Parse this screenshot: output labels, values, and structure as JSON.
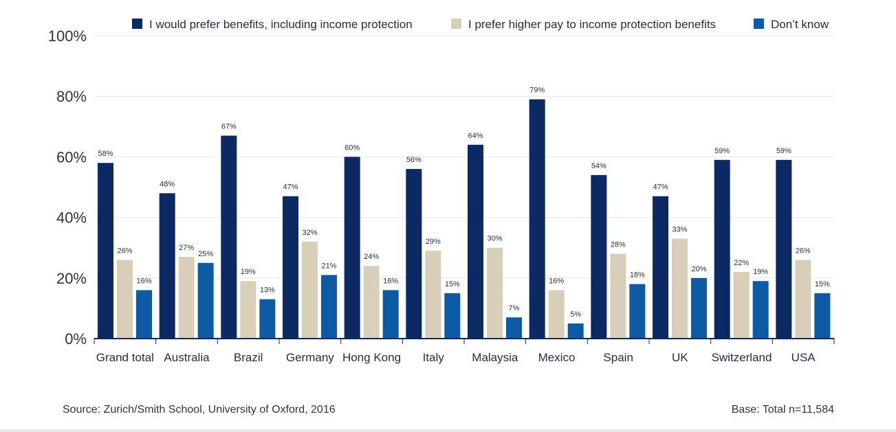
{
  "chart_data": {
    "type": "bar",
    "categories": [
      "Grand total",
      "Australia",
      "Brazil",
      "Germany",
      "Hong Kong",
      "Italy",
      "Malaysia",
      "Mexico",
      "Spain",
      "UK",
      "Switzerland",
      "USA"
    ],
    "series": [
      {
        "name": "I would prefer benefits, including income protection",
        "color": "#0b2a63",
        "values": [
          58,
          48,
          67,
          47,
          60,
          56,
          64,
          79,
          54,
          47,
          59,
          59
        ],
        "labels": [
          "58%",
          "48%",
          "67%",
          "47%",
          "60%",
          "56%",
          "64%",
          "79%",
          "54%",
          "47%",
          "59%",
          "59%"
        ]
      },
      {
        "name": "I prefer higher pay to income protection benefits",
        "color": "#d9cfb8",
        "values": [
          26,
          27,
          19,
          32,
          24,
          29,
          30,
          16,
          28,
          33,
          22,
          26
        ],
        "labels": [
          "26%",
          "27%",
          "19%",
          "32%",
          "24%",
          "29%",
          "30%",
          "16%",
          "28%",
          "33%",
          "22%",
          "26%"
        ]
      },
      {
        "name": "Don’t know",
        "color": "#0d5aa7",
        "values": [
          16,
          25,
          13,
          21,
          16,
          15,
          7,
          5,
          18,
          20,
          19,
          15
        ],
        "labels": [
          "16%",
          "25%",
          "13%",
          "21%",
          "16%",
          "15%",
          "7%",
          "5%",
          "18%",
          "20%",
          "19%",
          "15%"
        ]
      }
    ],
    "yticks": [
      0,
      20,
      40,
      60,
      80,
      100
    ],
    "ytick_labels": [
      "0%",
      "20%",
      "40%",
      "60%",
      "80%",
      "100%"
    ],
    "ylim": [
      0,
      100
    ],
    "grid": true,
    "legend": "top"
  },
  "footer": {
    "source": "Source: Zurich/Smith School, University of Oxford, 2016",
    "base": "Base: Total n=11,584"
  }
}
